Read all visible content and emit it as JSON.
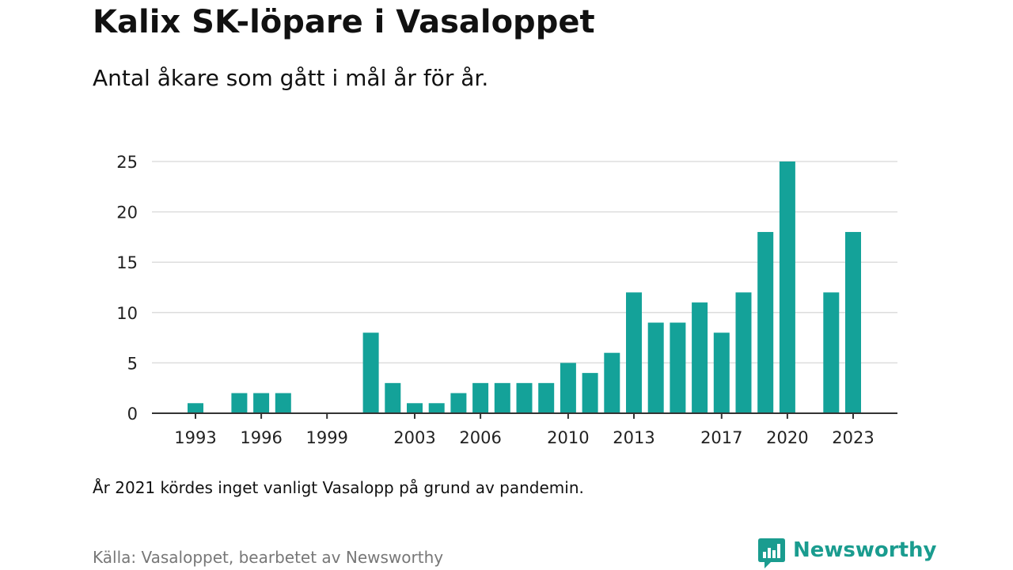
{
  "header": {
    "title": "Kalix SK-löpare i Vasaloppet",
    "subtitle": "Antal åkare som gått i mål år för år."
  },
  "footer": {
    "note": "År 2021 kördes inget vanligt Vasalopp på grund av pandemin.",
    "source": "Källa: Vasaloppet, bearbetet av Newsworthy",
    "logo_text": "Newsworthy"
  },
  "colors": {
    "bar": "#14a299",
    "grid": "#dddddd",
    "axis": "#333333",
    "logo": "#1a9c8f"
  },
  "chart_data": {
    "type": "bar",
    "title": "Kalix SK-löpare i Vasaloppet",
    "subtitle": "Antal åkare som gått i mål år för år.",
    "xlabel": "",
    "ylabel": "",
    "categories": [
      1993,
      1994,
      1995,
      1996,
      1997,
      1998,
      1999,
      2000,
      2001,
      2002,
      2003,
      2004,
      2005,
      2006,
      2007,
      2008,
      2009,
      2010,
      2011,
      2012,
      2013,
      2014,
      2015,
      2016,
      2017,
      2018,
      2019,
      2020,
      2021,
      2022,
      2023
    ],
    "values": [
      1,
      0,
      2,
      2,
      2,
      0,
      0,
      0,
      8,
      3,
      1,
      1,
      2,
      3,
      3,
      3,
      3,
      5,
      4,
      6,
      12,
      9,
      9,
      11,
      8,
      12,
      18,
      25,
      null,
      12,
      18
    ],
    "x_tick_labels": [
      "1993",
      "1996",
      "1999",
      "2003",
      "2006",
      "2010",
      "2013",
      "2017",
      "2020",
      "2023"
    ],
    "y_ticks": [
      0,
      5,
      10,
      15,
      20,
      25
    ],
    "ylim": [
      0,
      25
    ],
    "grid": true,
    "legend": "none"
  }
}
